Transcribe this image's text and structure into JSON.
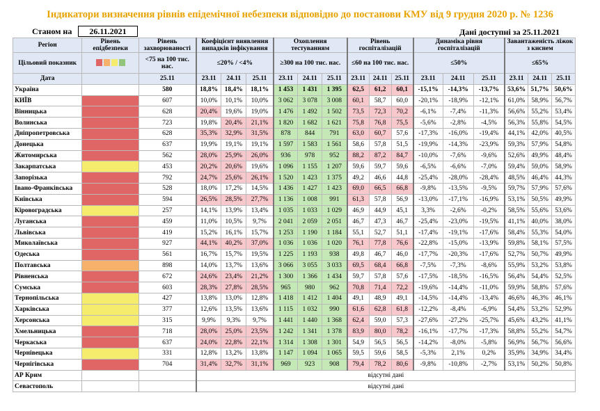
{
  "title": "Індикатори визначення рівнів епідемічної небезпеки відповідно до постанови КМУ від 9 грудня 2020 р. № 1236",
  "as_of_label": "Станом на",
  "as_of_date": "26.11.2021",
  "data_available": "Дані доступні за  25.11.2021",
  "headers": {
    "region": "Регіон",
    "level": "Рівень епідбезпеки",
    "incidence": "Рівень захворюваності",
    "detection": "Коефіцієнт виявлення випадків інфікування",
    "testing": "Охоплення тестуванням",
    "hosp": "Рівень госпіталізацій",
    "hosp_dyn": "Динаміка рівня госпіталізацій",
    "beds": "Завантаженість ліжок з киснем",
    "target_label": "Цільовий показник",
    "date_label": "Дата",
    "t_incidence": "<75 на 100 тис. нас.",
    "t_detection": "≤20% / <4%",
    "t_testing": "≥300 на 100 тис. нас.",
    "t_hosp": "≤60 на 100 тис. нас.",
    "t_hosp_dyn": "≤50%",
    "t_beds": "≤65%",
    "d_incidence": "25.11",
    "d1": "23.11",
    "d2": "24.11",
    "d3": "25.11"
  },
  "colors": {
    "red": "#e06666",
    "yellow": "#f5ec6e",
    "orange": "#f6b26b",
    "pink": "#f8c8cc",
    "green": "#c5e8b7",
    "legend": [
      "#e06666",
      "#f6b26b",
      "#f5ec6e",
      "#93c47d"
    ]
  },
  "rows": [
    {
      "region": "Україна",
      "level": "",
      "inc": "580",
      "det": [
        "18,8%",
        "18,4%",
        "18,1%"
      ],
      "test": [
        "1 453",
        "1 431",
        "1 395"
      ],
      "hosp": [
        "62,5",
        "61,2",
        "60,1"
      ],
      "dyn": [
        "-15,1%",
        "-14,3%",
        "-13,7%"
      ],
      "beds": [
        "53,6%",
        "51,7%",
        "50,6%"
      ]
    },
    {
      "region": "КИЇВ",
      "level": "red",
      "inc": "607",
      "det": [
        "10,0%",
        "10,1%",
        "10,0%"
      ],
      "test": [
        "3 062",
        "3 078",
        "3 008"
      ],
      "hosp": [
        "60,1",
        "58,7",
        "60,0"
      ],
      "dyn": [
        "-20,1%",
        "-18,9%",
        "-12,1%"
      ],
      "beds": [
        "61,0%",
        "58,9%",
        "56,7%"
      ]
    },
    {
      "region": "Вінницька",
      "level": "red",
      "inc": "628",
      "det": [
        "20,4%",
        "19,6%",
        "19,0%"
      ],
      "test": [
        "1 476",
        "1 492",
        "1 502"
      ],
      "hosp": [
        "73,5",
        "72,3",
        "70,2"
      ],
      "dyn": [
        "-6,1%",
        "-7,4%",
        "-11,3%"
      ],
      "beds": [
        "56,6%",
        "55,2%",
        "53,4%"
      ]
    },
    {
      "region": "Волинська",
      "level": "red",
      "inc": "723",
      "det": [
        "19,8%",
        "20,4%",
        "21,1%"
      ],
      "test": [
        "1 820",
        "1 682",
        "1 621"
      ],
      "hosp": [
        "75,8",
        "76,8",
        "75,5"
      ],
      "dyn": [
        "-5,6%",
        "-2,8%",
        "-4,5%"
      ],
      "beds": [
        "56,3%",
        "55,8%",
        "54,5%"
      ]
    },
    {
      "region": "Дніпропетровська",
      "level": "red",
      "inc": "628",
      "det": [
        "35,3%",
        "32,9%",
        "31,5%"
      ],
      "test": [
        "878",
        "844",
        "791"
      ],
      "hosp": [
        "63,0",
        "60,7",
        "57,6"
      ],
      "dyn": [
        "-17,3%",
        "-16,0%",
        "-19,4%"
      ],
      "beds": [
        "44,1%",
        "42,0%",
        "40,5%"
      ]
    },
    {
      "region": "Донецька",
      "level": "red",
      "inc": "637",
      "det": [
        "19,9%",
        "19,1%",
        "19,1%"
      ],
      "test": [
        "1 597",
        "1 583",
        "1 561"
      ],
      "hosp": [
        "58,6",
        "57,8",
        "51,5"
      ],
      "dyn": [
        "-19,9%",
        "-14,3%",
        "-23,9%"
      ],
      "beds": [
        "59,3%",
        "57,9%",
        "54,8%"
      ]
    },
    {
      "region": "Житомирська",
      "level": "red",
      "inc": "562",
      "det": [
        "28,0%",
        "25,9%",
        "26,0%"
      ],
      "test": [
        "936",
        "978",
        "952"
      ],
      "hosp": [
        "88,2",
        "87,2",
        "84,7"
      ],
      "dyn": [
        "-10,0%",
        "-7,6%",
        "-9,6%"
      ],
      "beds": [
        "52,6%",
        "49,9%",
        "48,4%"
      ]
    },
    {
      "region": "Закарпатська",
      "level": "yellow",
      "inc": "453",
      "det": [
        "20,2%",
        "20,6%",
        "19,6%"
      ],
      "test": [
        "1 096",
        "1 155",
        "1 207"
      ],
      "hosp": [
        "59,6",
        "59,7",
        "59,6"
      ],
      "dyn": [
        "-6,5%",
        "-6,6%",
        "-7,0%"
      ],
      "beds": [
        "59,4%",
        "59,0%",
        "58,9%"
      ]
    },
    {
      "region": "Запорізька",
      "level": "red",
      "inc": "792",
      "det": [
        "24,7%",
        "25,6%",
        "26,1%"
      ],
      "test": [
        "1 520",
        "1 423",
        "1 375"
      ],
      "hosp": [
        "49,2",
        "46,6",
        "44,8"
      ],
      "dyn": [
        "-25,4%",
        "-28,0%",
        "-28,4%"
      ],
      "beds": [
        "48,5%",
        "46,4%",
        "44,3%"
      ]
    },
    {
      "region": "Івано-Франківська",
      "level": "red",
      "inc": "528",
      "det": [
        "18,0%",
        "17,2%",
        "14,5%"
      ],
      "test": [
        "1 436",
        "1 427",
        "1 423"
      ],
      "hosp": [
        "69,0",
        "66,5",
        "66,8"
      ],
      "dyn": [
        "-9,8%",
        "-13,5%",
        "-9,5%"
      ],
      "beds": [
        "59,7%",
        "57,9%",
        "57,6%"
      ]
    },
    {
      "region": "Київська",
      "level": "red",
      "inc": "594",
      "det": [
        "26,5%",
        "28,5%",
        "27,7%"
      ],
      "test": [
        "1 136",
        "1 008",
        "991"
      ],
      "hosp": [
        "61,3",
        "57,8",
        "56,9"
      ],
      "dyn": [
        "-13,0%",
        "-17,1%",
        "-16,9%"
      ],
      "beds": [
        "53,1%",
        "50,5%",
        "49,9%"
      ]
    },
    {
      "region": "Кіровоградська",
      "level": "yellow",
      "inc": "257",
      "det": [
        "14,1%",
        "13,9%",
        "13,4%"
      ],
      "test": [
        "1 035",
        "1 033",
        "1 029"
      ],
      "hosp": [
        "46,9",
        "44,9",
        "45,1"
      ],
      "dyn": [
        "3,3%",
        "-2,6%",
        "-0,2%"
      ],
      "beds": [
        "58,5%",
        "55,6%",
        "53,6%"
      ]
    },
    {
      "region": "Луганська",
      "level": "red",
      "inc": "459",
      "det": [
        "11,0%",
        "10,5%",
        "9,7%"
      ],
      "test": [
        "2 041",
        "2 059",
        "2 051"
      ],
      "hosp": [
        "46,7",
        "47,3",
        "46,7"
      ],
      "dyn": [
        "-25,4%",
        "-23,0%",
        "-19,5%"
      ],
      "beds": [
        "41,1%",
        "40,0%",
        "38,0%"
      ]
    },
    {
      "region": "Львівська",
      "level": "red",
      "inc": "419",
      "det": [
        "15,2%",
        "16,1%",
        "15,7%"
      ],
      "test": [
        "1 253",
        "1 190",
        "1 184"
      ],
      "hosp": [
        "55,1",
        "52,7",
        "51,1"
      ],
      "dyn": [
        "-17,4%",
        "-19,1%",
        "-17,6%"
      ],
      "beds": [
        "58,4%",
        "55,3%",
        "54,0%"
      ]
    },
    {
      "region": "Миколаївська",
      "level": "red",
      "inc": "927",
      "det": [
        "44,1%",
        "40,2%",
        "37,0%"
      ],
      "test": [
        "1 036",
        "1 036",
        "1 020"
      ],
      "hosp": [
        "76,1",
        "77,8",
        "76,6"
      ],
      "dyn": [
        "-22,8%",
        "-15,0%",
        "-13,9%"
      ],
      "beds": [
        "59,8%",
        "58,1%",
        "57,5%"
      ]
    },
    {
      "region": "Одеська",
      "level": "red",
      "inc": "561",
      "det": [
        "16,7%",
        "15,7%",
        "19,5%"
      ],
      "test": [
        "1 225",
        "1 193",
        "938"
      ],
      "hosp": [
        "49,8",
        "46,7",
        "46,0"
      ],
      "dyn": [
        "-17,7%",
        "-20,3%",
        "-17,6%"
      ],
      "beds": [
        "52,7%",
        "50,7%",
        "49,9%"
      ]
    },
    {
      "region": "Полтавська",
      "level": "orange",
      "inc": "898",
      "det": [
        "14,0%",
        "13,7%",
        "13,6%"
      ],
      "test": [
        "3 066",
        "3 055",
        "3 033"
      ],
      "hosp": [
        "69,5",
        "68,4",
        "66,8"
      ],
      "dyn": [
        "-7,5%",
        "-7,3%",
        "-8,6%"
      ],
      "beds": [
        "55,9%",
        "53,2%",
        "53,8%"
      ]
    },
    {
      "region": "Рівненська",
      "level": "red",
      "inc": "672",
      "det": [
        "24,6%",
        "23,4%",
        "21,2%"
      ],
      "test": [
        "1 300",
        "1 366",
        "1 434"
      ],
      "hosp": [
        "59,7",
        "57,8",
        "57,6"
      ],
      "dyn": [
        "-17,5%",
        "-18,5%",
        "-16,5%"
      ],
      "beds": [
        "56,4%",
        "54,4%",
        "52,5%"
      ]
    },
    {
      "region": "Сумська",
      "level": "red",
      "inc": "603",
      "det": [
        "28,3%",
        "27,8%",
        "28,5%"
      ],
      "test": [
        "965",
        "980",
        "962"
      ],
      "hosp": [
        "70,8",
        "71,4",
        "72,2"
      ],
      "dyn": [
        "-19,6%",
        "-14,4%",
        "-11,0%"
      ],
      "beds": [
        "59,9%",
        "58,8%",
        "57,6%"
      ]
    },
    {
      "region": "Тернопільська",
      "level": "yellow",
      "inc": "427",
      "det": [
        "13,8%",
        "13,0%",
        "12,8%"
      ],
      "test": [
        "1 418",
        "1 412",
        "1 404"
      ],
      "hosp": [
        "49,1",
        "48,9",
        "49,1"
      ],
      "dyn": [
        "-14,5%",
        "-14,4%",
        "-13,4%"
      ],
      "beds": [
        "46,6%",
        "46,3%",
        "46,1%"
      ]
    },
    {
      "region": "Харківська",
      "level": "yellow",
      "inc": "377",
      "det": [
        "12,6%",
        "13,5%",
        "13,6%"
      ],
      "test": [
        "1 115",
        "1 032",
        "990"
      ],
      "hosp": [
        "61,6",
        "62,8",
        "61,8"
      ],
      "dyn": [
        "-12,2%",
        "-8,4%",
        "-6,9%"
      ],
      "beds": [
        "54,4%",
        "53,2%",
        "52,9%"
      ]
    },
    {
      "region": "Херсонська",
      "level": "yellow",
      "inc": "315",
      "det": [
        "9,9%",
        "9,3%",
        "9,7%"
      ],
      "test": [
        "1 441",
        "1 440",
        "1 368"
      ],
      "hosp": [
        "62,4",
        "59,0",
        "57,3"
      ],
      "dyn": [
        "-27,6%",
        "-27,2%",
        "-25,7%"
      ],
      "beds": [
        "45,6%",
        "43,2%",
        "41,1%"
      ]
    },
    {
      "region": "Хмельницька",
      "level": "red",
      "inc": "718",
      "det": [
        "28,0%",
        "25,0%",
        "23,5%"
      ],
      "test": [
        "1 242",
        "1 341",
        "1 378"
      ],
      "hosp": [
        "83,9",
        "80,0",
        "78,2"
      ],
      "dyn": [
        "-16,1%",
        "-17,7%",
        "-17,3%"
      ],
      "beds": [
        "58,8%",
        "55,2%",
        "54,7%"
      ]
    },
    {
      "region": "Черкаська",
      "level": "red",
      "inc": "637",
      "det": [
        "24,0%",
        "22,8%",
        "22,1%"
      ],
      "test": [
        "1 314",
        "1 308",
        "1 301"
      ],
      "hosp": [
        "54,9",
        "56,5",
        "56,5"
      ],
      "dyn": [
        "-14,2%",
        "-8,0%",
        "-5,8%"
      ],
      "beds": [
        "56,9%",
        "56,7%",
        "56,6%"
      ]
    },
    {
      "region": "Чернівецька",
      "level": "yellow",
      "inc": "331",
      "det": [
        "12,8%",
        "13,2%",
        "13,8%"
      ],
      "test": [
        "1 147",
        "1 094",
        "1 065"
      ],
      "hosp": [
        "59,5",
        "59,6",
        "58,5"
      ],
      "dyn": [
        "-5,3%",
        "2,1%",
        "0,2%"
      ],
      "beds": [
        "35,9%",
        "34,9%",
        "34,4%"
      ]
    },
    {
      "region": "Чернігівська",
      "level": "red",
      "inc": "704",
      "det": [
        "31,4%",
        "32,7%",
        "31,1%"
      ],
      "test": [
        "969",
        "923",
        "908"
      ],
      "hosp": [
        "79,4",
        "78,2",
        "80,6"
      ],
      "dyn": [
        "-9,8%",
        "-10,8%",
        "-2,7%"
      ],
      "beds": [
        "53,1%",
        "50,2%",
        "50,8%"
      ]
    }
  ],
  "na_rows": [
    {
      "region": "АР Крим",
      "note": "відсутні дані"
    },
    {
      "region": "Севастополь",
      "note": "відсутні дані"
    }
  ]
}
